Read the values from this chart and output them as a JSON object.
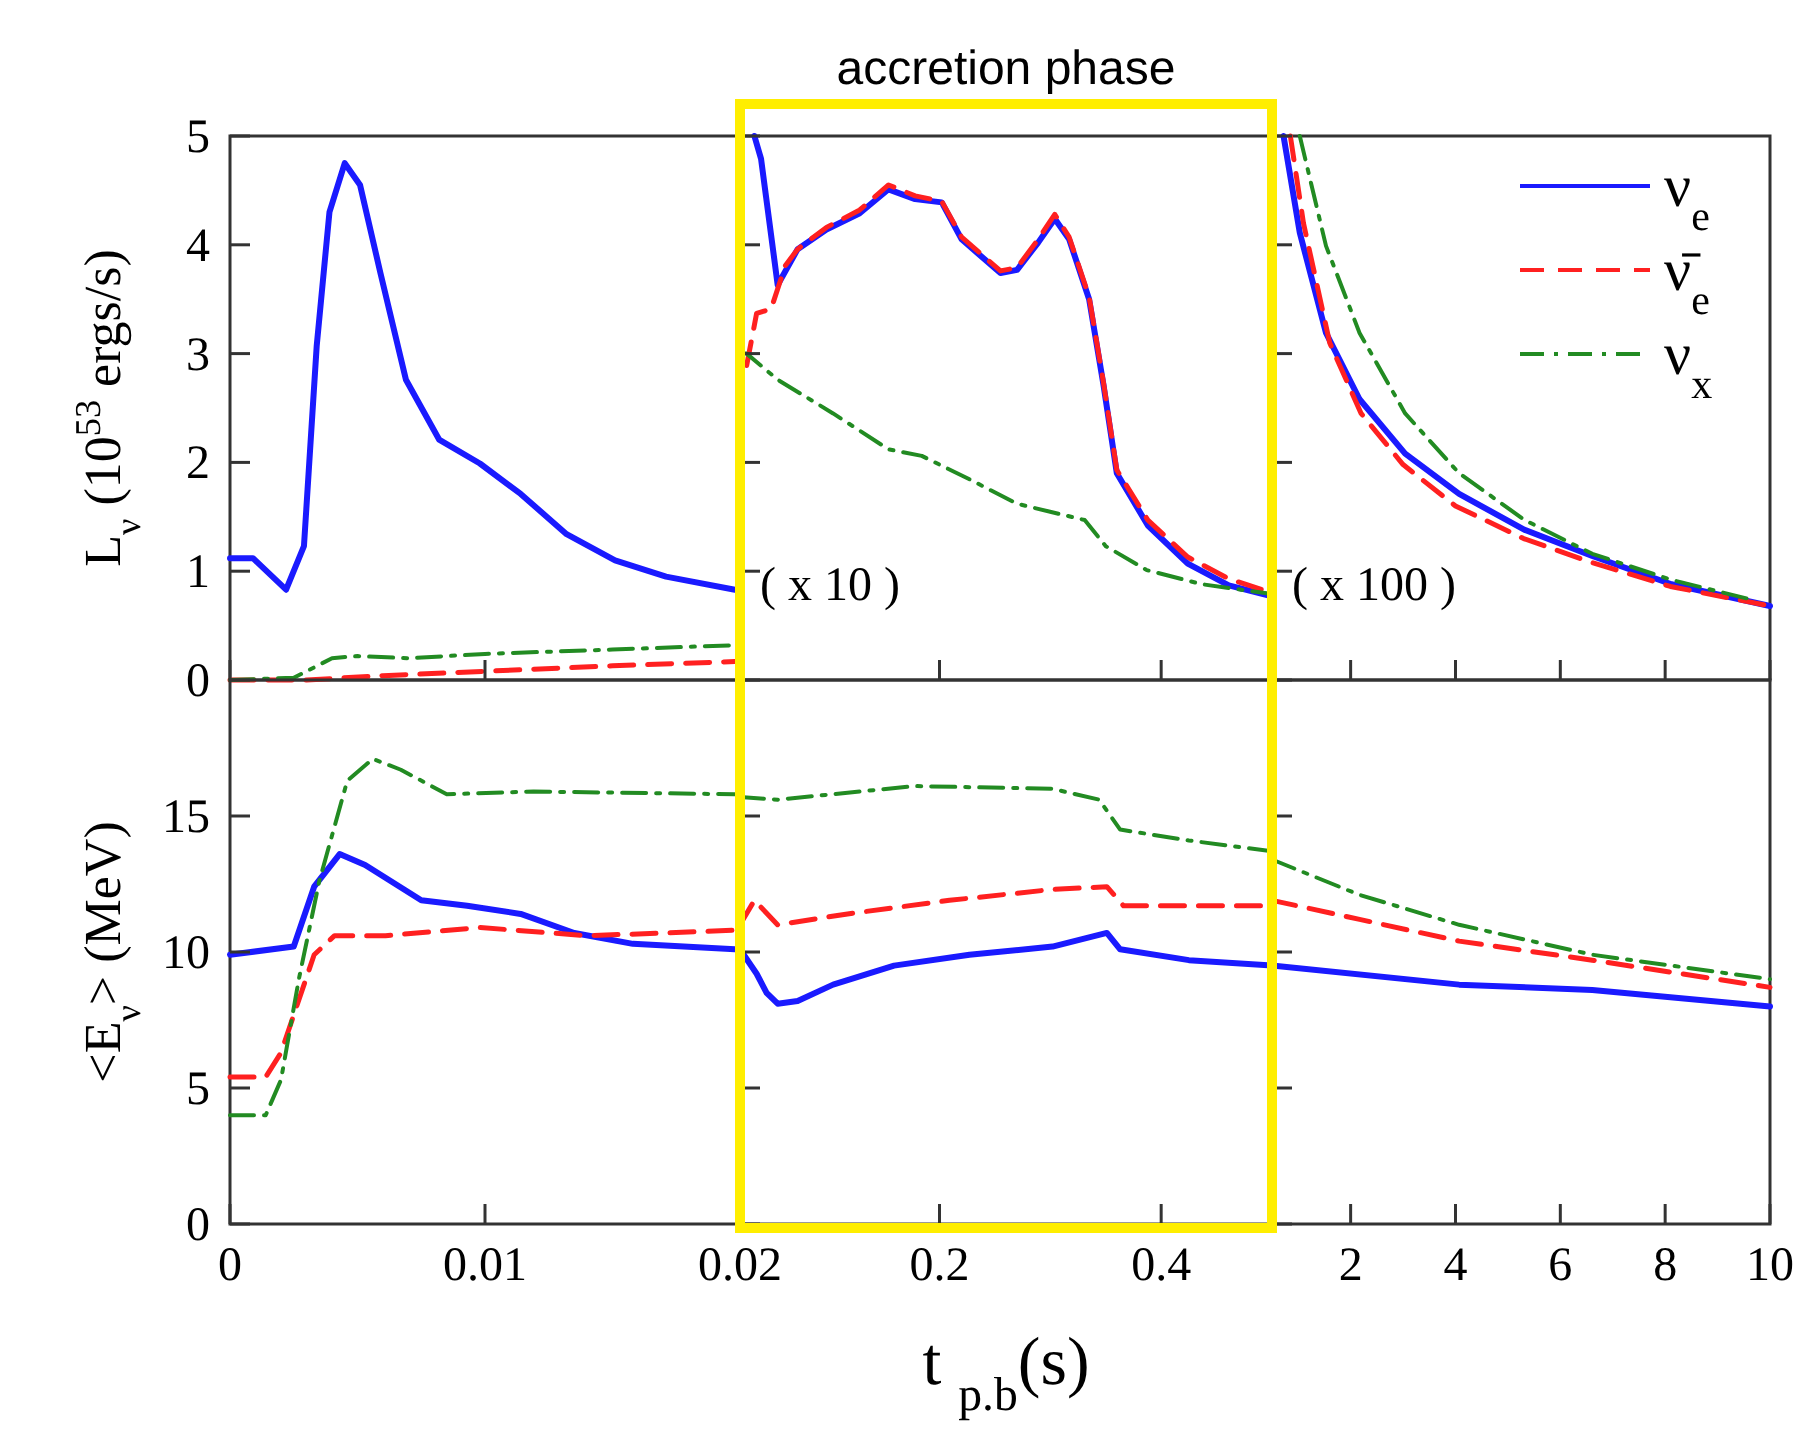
{
  "chart_data": [
    {
      "type": "line",
      "ylabel": "L$_{ν}$ (10$^{53}$ ergs/s)",
      "xlim": [
        0,
        0.02
      ],
      "xticks": [
        0,
        0.01,
        0.02
      ],
      "ylim": [
        0,
        5
      ],
      "yticks": [
        0,
        1,
        2,
        3,
        4,
        5
      ],
      "tick_labels": "y",
      "series": [
        {
          "color": "#1a1aff",
          "line_style": "solid",
          "x": [
            0,
            0.0009,
            0.0022,
            0.0029,
            0.0034,
            0.0039,
            0.0045,
            0.0051,
            0.0059,
            0.0069,
            0.0082,
            0.0098,
            0.0114,
            0.0132,
            0.0151,
            0.0171,
            0.0198
          ],
          "values": [
            1.12,
            1.12,
            0.83,
            1.23,
            3.07,
            4.3,
            4.75,
            4.55,
            3.74,
            2.76,
            2.21,
            1.99,
            1.71,
            1.34,
            1.1,
            0.95,
            0.83
          ]
        },
        {
          "color": "#ff2020",
          "line_style": "dashed",
          "x": [
            0,
            0.003,
            0.006,
            0.01,
            0.015,
            0.0198
          ],
          "values": [
            0,
            0,
            0.04,
            0.08,
            0.13,
            0.17
          ]
        },
        {
          "color": "#228b22",
          "line_style": "dashdot",
          "x": [
            0,
            0.0025,
            0.004,
            0.005,
            0.007,
            0.01,
            0.015,
            0.0198
          ],
          "values": [
            0,
            0.02,
            0.2,
            0.22,
            0.2,
            0.24,
            0.28,
            0.32
          ]
        }
      ]
    },
    {
      "type": "line",
      "title": "accretion phase",
      "xlim": [
        0.02,
        0.5
      ],
      "xticks": [
        0.2,
        0.4
      ],
      "ylim": [
        0,
        5
      ],
      "yticks": [
        0,
        1,
        2,
        3,
        4,
        5
      ],
      "tick_labels": false,
      "annotations": [
        "( x 10 )"
      ],
      "series": [
        {
          "color": "#1a1aff",
          "line_style": "solid",
          "x": [
            0.033,
            0.039,
            0.054,
            0.072,
            0.098,
            0.128,
            0.154,
            0.178,
            0.202,
            0.22,
            0.255,
            0.27,
            0.289,
            0.304,
            0.317,
            0.335,
            0.348,
            0.36,
            0.388,
            0.424,
            0.461,
            0.5
          ],
          "values": [
            5.0,
            4.79,
            3.63,
            3.96,
            4.14,
            4.29,
            4.51,
            4.42,
            4.39,
            4.05,
            3.74,
            3.77,
            4.02,
            4.24,
            4.05,
            3.5,
            2.71,
            1.9,
            1.42,
            1.07,
            0.87,
            0.77
          ]
        },
        {
          "color": "#ff2020",
          "line_style": "dashed",
          "x": [
            0.026,
            0.035,
            0.048,
            0.061,
            0.072,
            0.098,
            0.128,
            0.154,
            0.178,
            0.202,
            0.22,
            0.255,
            0.27,
            0.289,
            0.304,
            0.317,
            0.335,
            0.348,
            0.36,
            0.388,
            0.424,
            0.461,
            0.5
          ],
          "values": [
            2.89,
            3.37,
            3.41,
            3.81,
            3.96,
            4.16,
            4.32,
            4.55,
            4.45,
            4.4,
            4.07,
            3.76,
            3.79,
            4.05,
            4.28,
            4.07,
            3.52,
            2.73,
            1.93,
            1.47,
            1.13,
            0.93,
            0.8
          ]
        },
        {
          "color": "#228b22",
          "line_style": "dashdot",
          "x": [
            0.021,
            0.026,
            0.054,
            0.104,
            0.154,
            0.184,
            0.228,
            0.27,
            0.331,
            0.35,
            0.387,
            0.437,
            0.5
          ],
          "values": [
            3.0,
            3.0,
            2.76,
            2.45,
            2.12,
            2.06,
            1.84,
            1.62,
            1.47,
            1.23,
            1.01,
            0.88,
            0.79
          ]
        }
      ]
    },
    {
      "type": "line",
      "xlim": [
        0.5,
        10
      ],
      "xticks": [
        2,
        4,
        6,
        8,
        10
      ],
      "ylim": [
        0,
        5
      ],
      "yticks": [
        0,
        1,
        2,
        3,
        4,
        5
      ],
      "tick_labels": false,
      "legend": "top right",
      "annotations": [
        "( x 100 )"
      ],
      "series": [
        {
          "name": "ν$_{e}$",
          "color": "#1a1aff",
          "line_style": "solid",
          "x": [
            0.72,
            1.03,
            1.53,
            2.17,
            3.04,
            4.07,
            5.32,
            6.61,
            8.12,
            10
          ],
          "values": [
            5.0,
            4.11,
            3.19,
            2.58,
            2.08,
            1.71,
            1.38,
            1.14,
            0.88,
            0.68
          ]
        },
        {
          "name": "ν̄$_{e}$",
          "color": "#ff2020",
          "line_style": "dashed",
          "x": [
            0.85,
            1.1,
            1.6,
            2.2,
            3.0,
            4.0,
            5.3,
            6.6,
            8.1,
            10
          ],
          "values": [
            5.0,
            4.2,
            3.1,
            2.45,
            1.98,
            1.6,
            1.3,
            1.08,
            0.86,
            0.68
          ]
        },
        {
          "name": "ν$_{x}$",
          "color": "#228b22",
          "line_style": "dashdot",
          "x": [
            1.03,
            1.53,
            2.17,
            3.04,
            4.07,
            5.32,
            6.61,
            8.12,
            9.64
          ],
          "values": [
            5.0,
            3.99,
            3.19,
            2.45,
            1.9,
            1.47,
            1.16,
            0.92,
            0.74
          ]
        }
      ]
    },
    {
      "type": "line",
      "ylabel": "<E$_{ν}$> (MeV)",
      "xlim": [
        0,
        0.02
      ],
      "xticks": [
        0,
        0.01,
        0.02
      ],
      "ylim": [
        0,
        20
      ],
      "yticks": [
        0,
        5,
        10,
        15
      ],
      "series": [
        {
          "color": "#1a1aff",
          "line_style": "solid",
          "x": [
            0,
            0.0025,
            0.0033,
            0.0043,
            0.0053,
            0.0075,
            0.0093,
            0.0114,
            0.0135,
            0.0158,
            0.0198
          ],
          "values": [
            9.9,
            10.2,
            12.4,
            13.6,
            13.2,
            11.9,
            11.7,
            11.4,
            10.7,
            10.3,
            10.1
          ]
        },
        {
          "color": "#ff2020",
          "line_style": "dashed",
          "x": [
            0,
            0.0014,
            0.002,
            0.0033,
            0.0041,
            0.0061,
            0.0098,
            0.014,
            0.0171,
            0.0198
          ],
          "values": [
            5.4,
            5.4,
            6.3,
            9.9,
            10.6,
            10.6,
            10.9,
            10.6,
            10.7,
            10.8
          ]
        },
        {
          "color": "#228b22",
          "line_style": "dashdot",
          "x": [
            0,
            0.0014,
            0.002,
            0.0027,
            0.0035,
            0.0046,
            0.0056,
            0.0067,
            0.0085,
            0.0119,
            0.0198
          ],
          "values": [
            4.0,
            4.0,
            5.3,
            9.0,
            12.6,
            16.3,
            17.1,
            16.7,
            15.8,
            15.9,
            15.8
          ]
        }
      ]
    },
    {
      "type": "line",
      "xlabel": "t $_{p.b}$(s)",
      "xlim": [
        0.02,
        0.5
      ],
      "xticks": [
        0.2,
        0.4
      ],
      "ylim": [
        0,
        20
      ],
      "yticks": [
        0,
        5,
        10,
        15
      ],
      "tick_labels": "x",
      "series": [
        {
          "color": "#1a1aff",
          "line_style": "solid",
          "x": [
            0.02,
            0.035,
            0.044,
            0.054,
            0.072,
            0.104,
            0.159,
            0.227,
            0.302,
            0.351,
            0.363,
            0.425,
            0.5
          ],
          "values": [
            10.1,
            9.2,
            8.5,
            8.1,
            8.2,
            8.8,
            9.5,
            9.9,
            10.2,
            10.7,
            10.1,
            9.7,
            9.5
          ]
        },
        {
          "color": "#ff2020",
          "line_style": "dashed",
          "x": [
            0.02,
            0.033,
            0.054,
            0.117,
            0.209,
            0.302,
            0.351,
            0.366,
            0.5
          ],
          "values": [
            11.0,
            11.9,
            11.0,
            11.4,
            11.9,
            12.3,
            12.4,
            11.7,
            11.7
          ]
        },
        {
          "color": "#228b22",
          "line_style": "dashdot",
          "x": [
            0.02,
            0.054,
            0.178,
            0.302,
            0.344,
            0.363,
            0.425,
            0.5
          ],
          "values": [
            15.7,
            15.6,
            16.1,
            16.0,
            15.6,
            14.5,
            14.1,
            13.7
          ]
        }
      ]
    },
    {
      "type": "line",
      "xlim": [
        0.5,
        10
      ],
      "xticks": [
        2,
        4,
        6,
        8,
        10
      ],
      "ylim": [
        0,
        20
      ],
      "yticks": [
        0,
        5,
        10,
        15
      ],
      "tick_labels": "x",
      "series": [
        {
          "color": "#1a1aff",
          "line_style": "solid",
          "x": [
            0.5,
            4.07,
            6.61,
            10
          ],
          "values": [
            9.5,
            8.8,
            8.6,
            8.0
          ]
        },
        {
          "color": "#ff2020",
          "line_style": "dashed",
          "x": [
            0.5,
            2.17,
            4.07,
            6.61,
            10
          ],
          "values": [
            11.9,
            11.2,
            10.4,
            9.7,
            8.7
          ]
        },
        {
          "color": "#228b22",
          "line_style": "dashdot",
          "x": [
            0.5,
            2.17,
            4.07,
            6.61,
            10
          ],
          "values": [
            13.4,
            12.1,
            11.0,
            9.9,
            9.0
          ]
        }
      ]
    }
  ]
}
